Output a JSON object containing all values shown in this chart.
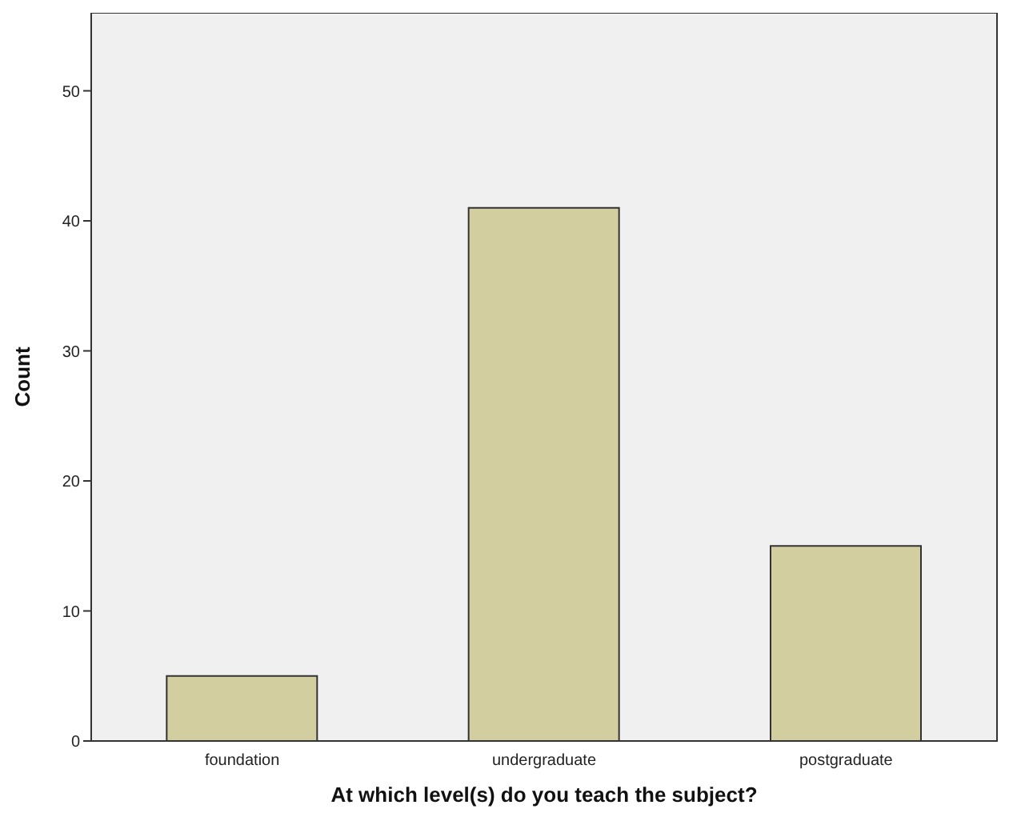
{
  "chart_data": {
    "type": "bar",
    "xlabel": "At which level(s) do you teach the subject?",
    "ylabel": "Count",
    "categories": [
      "foundation",
      "undergraduate",
      "postgraduate"
    ],
    "values": [
      5,
      41,
      15
    ],
    "color": "#d3ce9f",
    "ylim": [
      0,
      56
    ],
    "yticks": [
      0,
      10,
      20,
      30,
      40,
      50
    ],
    "grid": false
  }
}
